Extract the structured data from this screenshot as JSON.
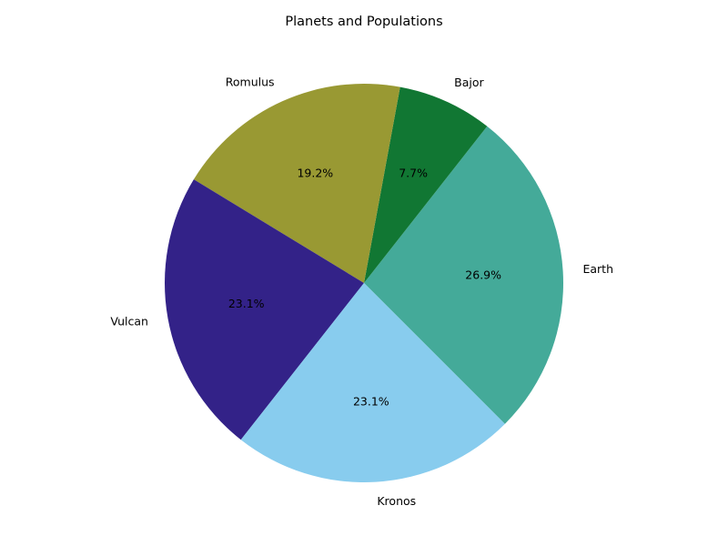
{
  "chart_data": {
    "type": "pie",
    "title": "Planets and Populations",
    "categories": [
      "Earth",
      "Bajor",
      "Romulus",
      "Vulcan",
      "Kronos"
    ],
    "values": [
      26.9,
      7.7,
      19.2,
      23.1,
      23.1
    ],
    "percent_labels": [
      "26.9%",
      "7.7%",
      "19.2%",
      "23.1%",
      "23.1%"
    ],
    "colors": [
      "#44aa99",
      "#117733",
      "#999933",
      "#332288",
      "#88ccee"
    ],
    "start_angle_deg": -45,
    "direction": "counterclockwise",
    "legend": "none"
  }
}
